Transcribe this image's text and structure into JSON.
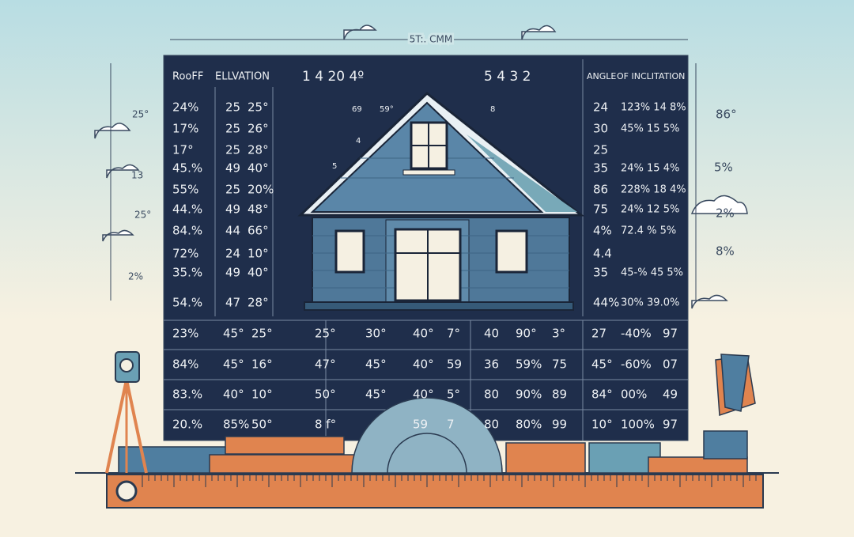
{
  "top_label": "5T:. CMM",
  "header": {
    "roof": "RooFF",
    "elevation": "ELLVATION",
    "nums_left": "1   4   20   4º",
    "nums_right": "5   4   3   2",
    "angle": "ANGLE",
    "inclination": "OF INCLITATION"
  },
  "left_rows": [
    [
      "24%",
      "25",
      "25°"
    ],
    [
      "17%",
      "25",
      "26°"
    ],
    [
      "17°",
      "25",
      "28°"
    ],
    [
      "45.%",
      "49",
      "40°"
    ],
    [
      "55%",
      "25",
      "20%"
    ],
    [
      "44.%",
      "49",
      "48°"
    ],
    [
      "84.%",
      "44",
      "66°"
    ],
    [
      "72%",
      "24",
      "10°"
    ],
    [
      "35.%",
      "49",
      "40°"
    ],
    [
      "54.%",
      "47",
      "28°"
    ]
  ],
  "right_rows": [
    [
      "24",
      "123% 14 8%"
    ],
    [
      "30",
      "45% 15 5%"
    ],
    [
      "25"
    ],
    [
      "35",
      "24% 15 4%"
    ],
    [
      "86",
      "228% 18 4%"
    ],
    [
      "75",
      "24% 12 5%"
    ],
    [
      "4%",
      "72.4 % 5%"
    ],
    [
      "4.4"
    ],
    [
      "35",
      "45-% 45 5%"
    ],
    [
      "44%",
      "30% 39.0%"
    ]
  ],
  "bottom_rows": [
    [
      "23%",
      "45°",
      "25°",
      "25°",
      "30°",
      "40°",
      "7°",
      "40",
      "90°",
      "3°",
      "27",
      "-40%",
      "97"
    ],
    [
      "84%",
      "45°",
      "16°",
      "47°",
      "45°",
      "40°",
      "59",
      "36",
      "59%",
      "75",
      "45°",
      "-60%",
      "07"
    ],
    [
      "83.%",
      "40°",
      "10°",
      "50°",
      "45°",
      "40°",
      "5°",
      "80",
      "90%",
      "89",
      "84°",
      "00%",
      "49"
    ],
    [
      "20.%",
      "85%",
      "50°",
      "8 f°",
      "59",
      "7",
      "80",
      "80%",
      "99",
      "10°",
      "100%",
      "97"
    ]
  ],
  "side_left": [
    "25°",
    "13",
    "25°",
    "2%"
  ],
  "side_right": [
    "86°",
    "5%",
    "2%",
    "8%"
  ],
  "diagram_labels": [
    "69",
    "59°",
    "8",
    "4",
    "5"
  ]
}
